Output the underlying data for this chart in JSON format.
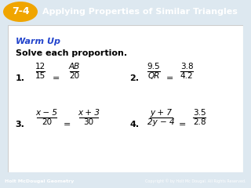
{
  "header_bg": "#2e86ab",
  "header_text": "Applying Properties of Similar Triangles",
  "header_label": "7-4",
  "header_label_bg": "#f0a500",
  "footer_bg": "#2060a0",
  "footer_left": "Holt McDougal Geometry",
  "footer_right": "Copyright © by Holt Mc Dougal. All Rights Reserved.",
  "content_bg": "#dde8f0",
  "box_bg": "#ffffff",
  "box_border": "#cccccc",
  "warmup_title": "Warm Up",
  "warmup_title_color": "#2244cc",
  "subtitle": "Solve each proportion.",
  "p1_num": "1.",
  "p1_frac1_top": "12",
  "p1_frac1_bot": "15",
  "p1_frac2_top": "AB",
  "p1_frac2_bot": "20",
  "p2_num": "2.",
  "p2_frac1_top": "9.5",
  "p2_frac1_bot": "QR",
  "p2_frac2_top": "3.8",
  "p2_frac2_bot": "4.2",
  "p3_num": "3.",
  "p3_frac1_top": "x − 5",
  "p3_frac1_bot": "20",
  "p3_frac2_top": "x + 3",
  "p3_frac2_bot": "30",
  "p4_num": "4.",
  "p4_frac1_top": "y + 7",
  "p4_frac1_bot": "2y − 4",
  "p4_frac2_top": "3.5",
  "p4_frac2_bot": "2.8"
}
